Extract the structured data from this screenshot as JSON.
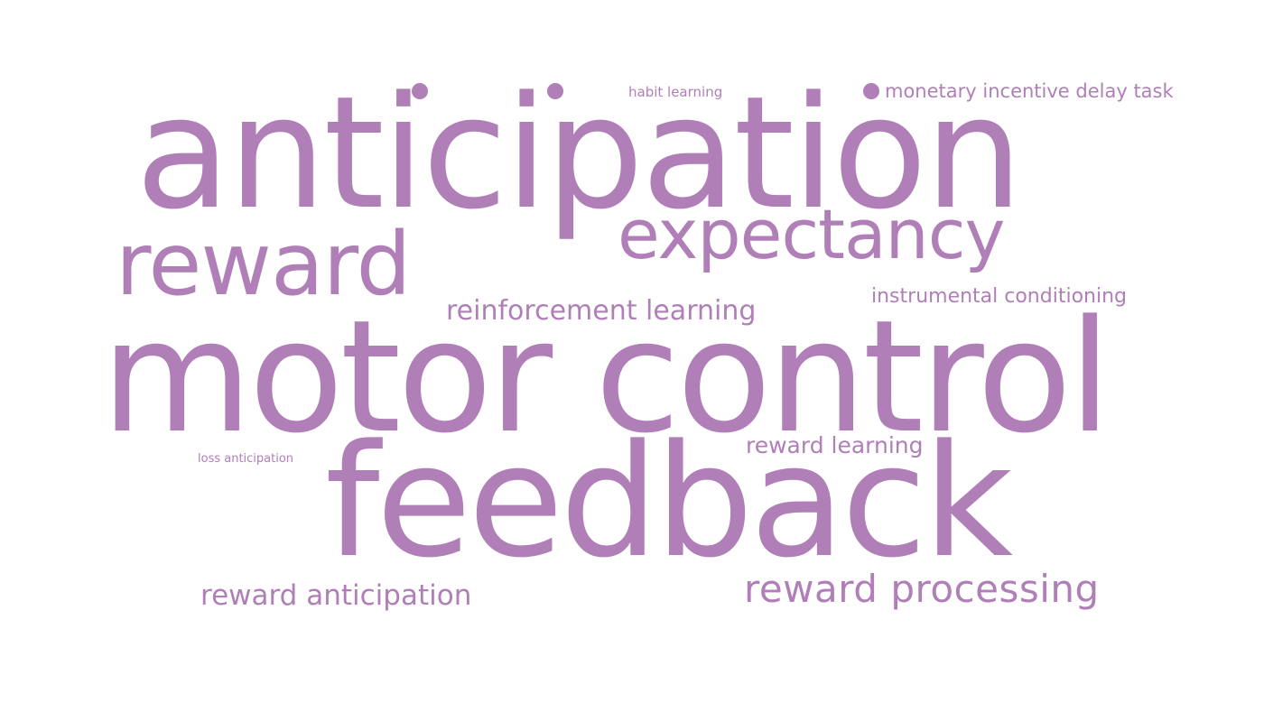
{
  "word_color": "#b07fb8",
  "words": {
    "anticipation": "anticipation",
    "motor_control": "motor control",
    "feedback": "feedback",
    "reward": "reward",
    "expectancy": "expectancy",
    "reinforcement_learning": "reinforcement learning",
    "instrumental_conditioning": "instrumental conditioning",
    "reward_learning": "reward learning",
    "loss_anticipation": "loss anticipation",
    "reward_anticipation": "reward anticipation",
    "reward_processing": "reward processing",
    "habit_learning": "habit learning",
    "monetary_incentive_delay_task": "monetary incentive delay task"
  }
}
